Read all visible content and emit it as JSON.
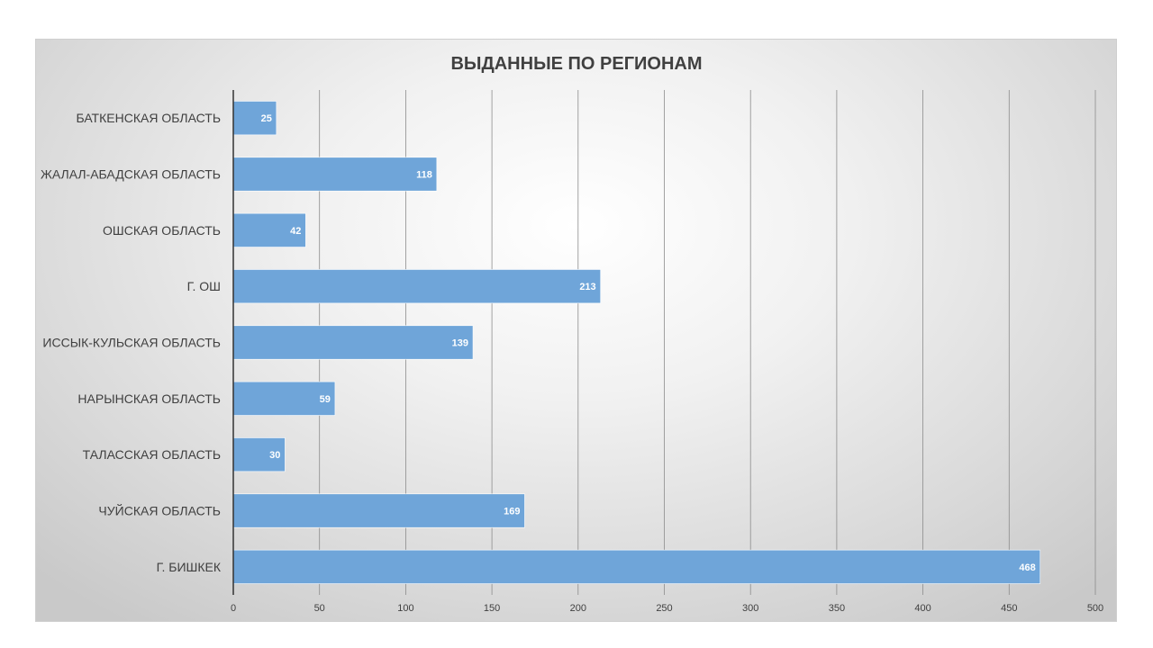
{
  "chart_data": {
    "type": "bar",
    "orientation": "horizontal",
    "title": "ВЫДАННЫЕ ПО РЕГИОНАМ",
    "categories": [
      "БАТКЕНСКАЯ ОБЛАСТЬ",
      "ЖАЛАЛ-АБАДСКАЯ ОБЛАСТЬ",
      "ОШСКАЯ ОБЛАСТЬ",
      "Г. ОШ",
      "ИССЫК-КУЛЬСКАЯ ОБЛАСТЬ",
      "НАРЫНСКАЯ ОБЛАСТЬ",
      "ТАЛАССКАЯ ОБЛАСТЬ",
      "ЧУЙСКАЯ ОБЛАСТЬ",
      "Г. БИШКЕК"
    ],
    "values": [
      25,
      118,
      42,
      213,
      139,
      59,
      30,
      169,
      468
    ],
    "xlim": [
      0,
      500
    ],
    "xticks": [
      "0",
      "50",
      "100",
      "150",
      "200",
      "250",
      "300",
      "350",
      "400",
      "450",
      "500"
    ],
    "grid": true,
    "bar_color": "#6fa5d9",
    "data_labels": true
  }
}
